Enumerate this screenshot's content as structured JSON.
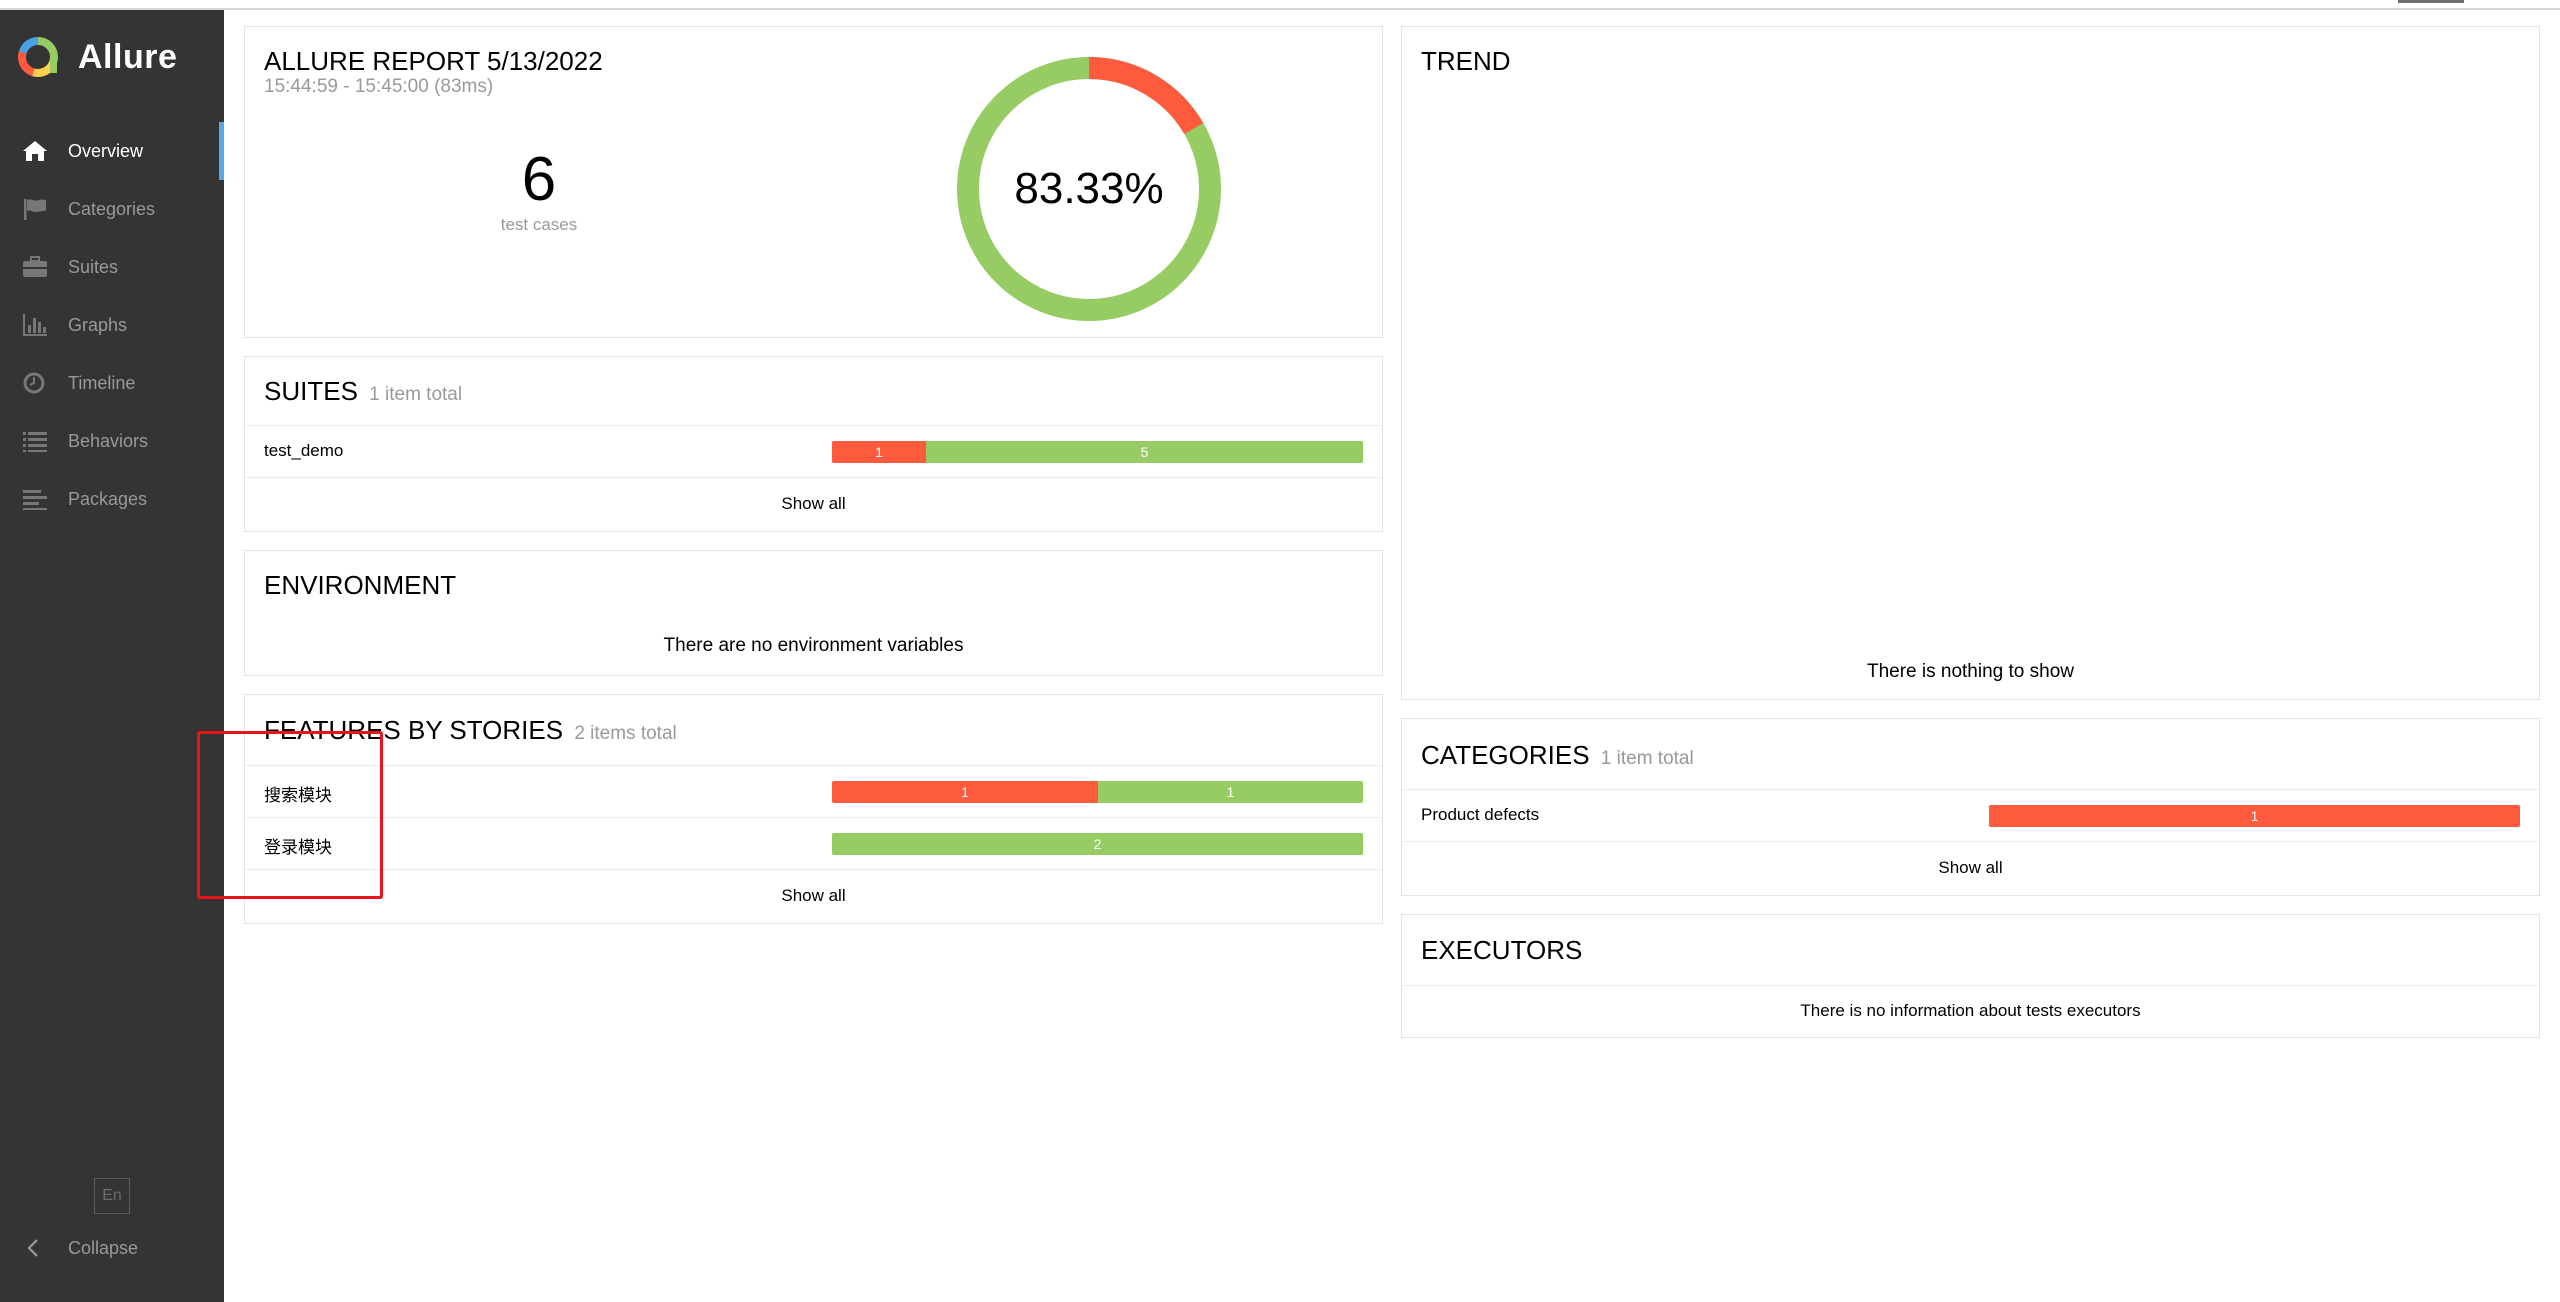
{
  "app": {
    "name": "Allure"
  },
  "sidebar": {
    "items": [
      {
        "label": "Overview",
        "icon": "home-icon"
      },
      {
        "label": "Categories",
        "icon": "flag-icon"
      },
      {
        "label": "Suites",
        "icon": "briefcase-icon"
      },
      {
        "label": "Graphs",
        "icon": "bar-chart-icon"
      },
      {
        "label": "Timeline",
        "icon": "clock-icon"
      },
      {
        "label": "Behaviors",
        "icon": "list-icon"
      },
      {
        "label": "Packages",
        "icon": "align-left-icon"
      }
    ],
    "active": "Overview",
    "language": "En",
    "collapse_label": "Collapse"
  },
  "summary": {
    "title": "ALLURE REPORT 5/13/2022",
    "time": "15:44:59 - 15:45:00 (83ms)",
    "test_count": "6",
    "test_count_label": "test cases",
    "percent": "83.33%",
    "donut": {
      "passed": 5,
      "failed": 1
    }
  },
  "suites": {
    "title": "SUITES",
    "subtitle": "1 item total",
    "rows": [
      {
        "name": "test_demo",
        "failed": "1",
        "passed": "5"
      }
    ],
    "show_all": "Show all"
  },
  "environment": {
    "title": "ENVIRONMENT",
    "empty": "There are no environment variables"
  },
  "features": {
    "title": "FEATURES BY STORIES",
    "subtitle": "2 items total",
    "rows": [
      {
        "name": "搜索模块",
        "failed": "1",
        "passed": "1"
      },
      {
        "name": "登录模块",
        "failed": "",
        "passed": "2"
      }
    ],
    "show_all": "Show all"
  },
  "trend": {
    "title": "TREND",
    "empty": "There is nothing to show"
  },
  "categories": {
    "title": "CATEGORIES",
    "subtitle": "1 item total",
    "rows": [
      {
        "name": "Product defects",
        "failed": "1"
      }
    ],
    "show_all": "Show all"
  },
  "executors": {
    "title": "EXECUTORS",
    "empty": "There is no information about tests executors"
  },
  "colors": {
    "failed": "#fd5a3e",
    "passed": "#97cc64",
    "sidebar": "#343434",
    "active_indicator": "#5ba8e6",
    "annotation": "#e8141a"
  }
}
